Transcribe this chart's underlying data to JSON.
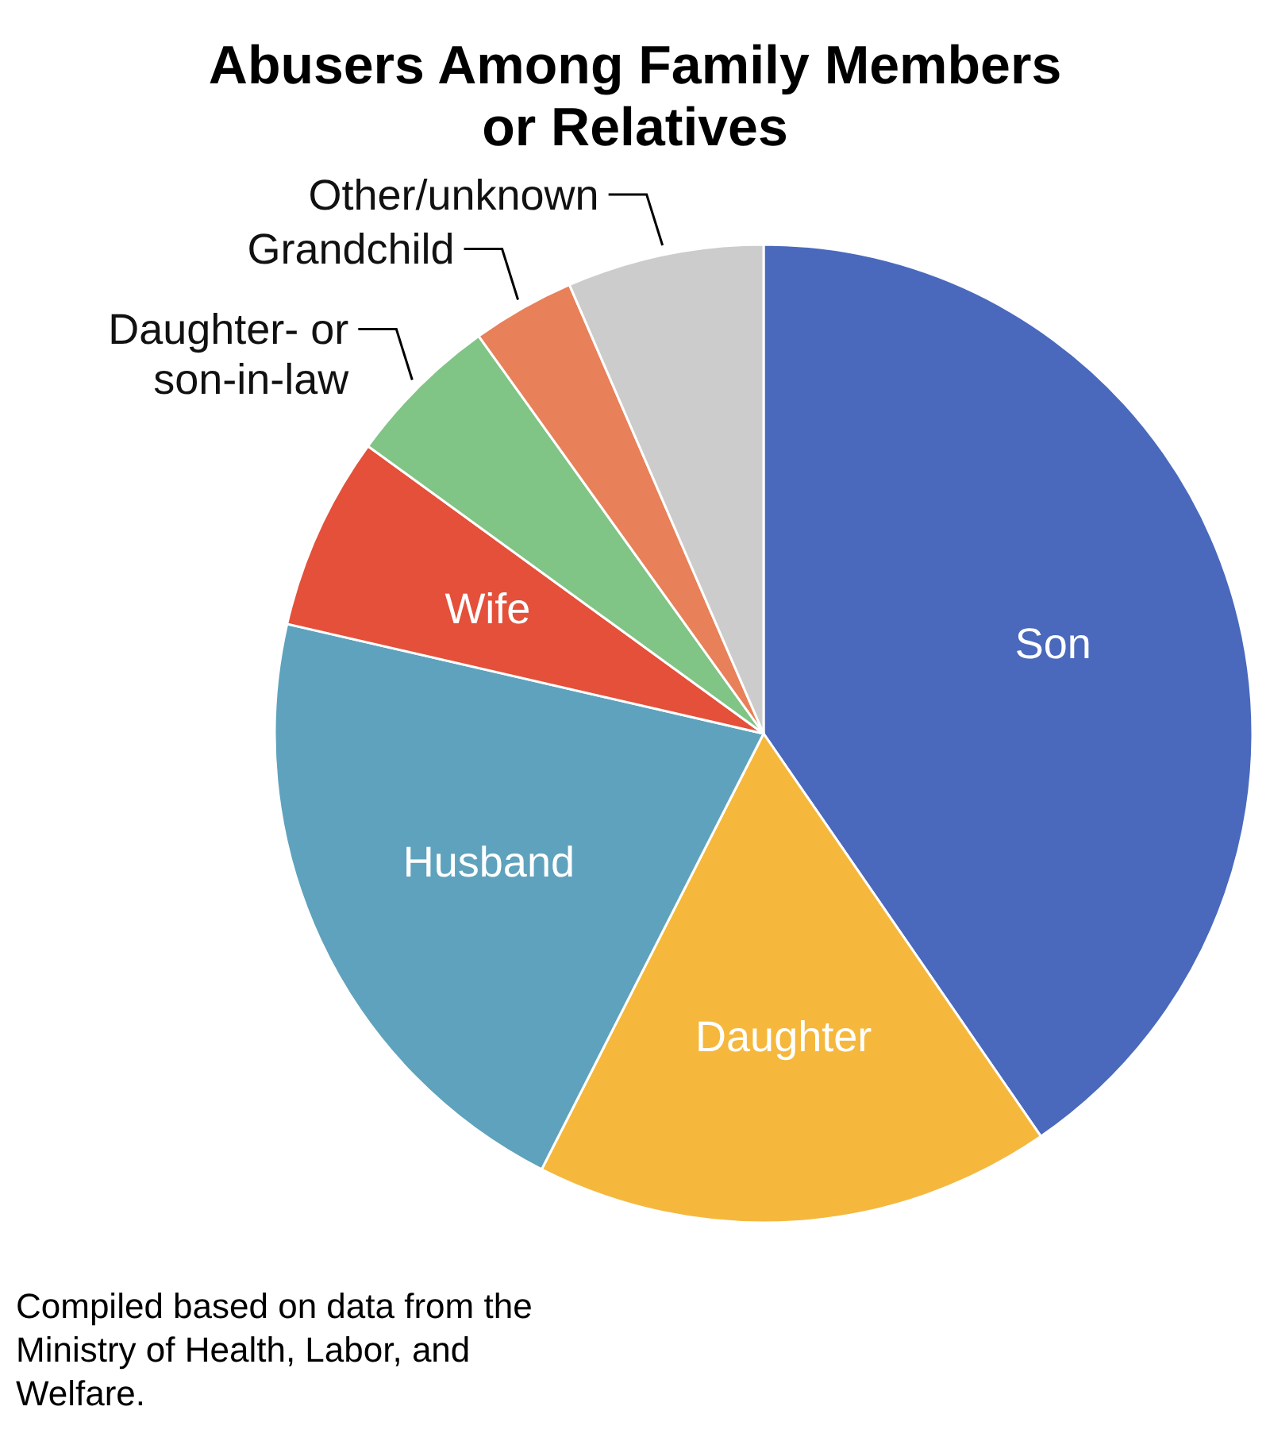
{
  "chart_data": {
    "type": "pie",
    "title": "Abusers Among Family Members or Relatives",
    "categories": [
      "Son",
      "Daughter",
      "Husband",
      "Wife",
      "Daughter- or son-in-law",
      "Grandchild",
      "Other/unknown"
    ],
    "values": [
      40.4,
      17.1,
      21.1,
      6.4,
      5.1,
      3.4,
      6.5
    ],
    "colors": [
      "#4a69bd",
      "#f5b83d",
      "#5fa2bd",
      "#e4503a",
      "#80c486",
      "#e8805a",
      "#cccccc"
    ],
    "annotations": [
      "Compiled based on data from the Ministry of Health, Labor, and Welfare."
    ]
  }
}
